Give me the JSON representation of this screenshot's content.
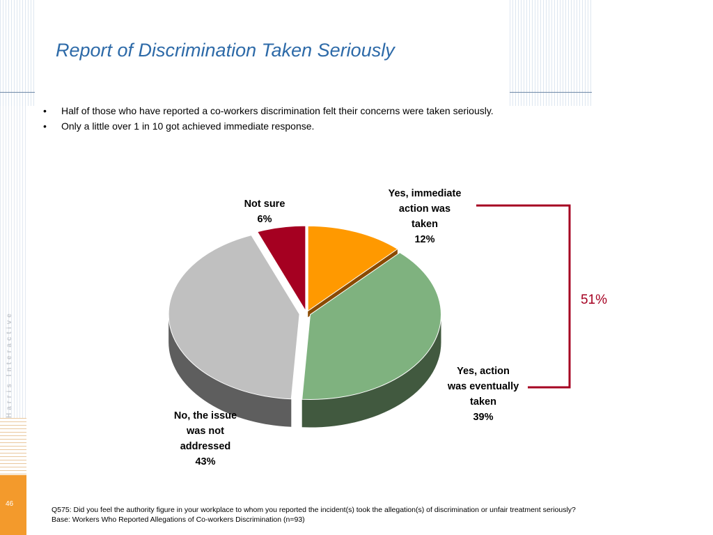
{
  "slide": {
    "title": "Report of Discrimination Taken Seriously",
    "bullets": [
      "Half of those who have reported a co-workers discrimination felt their concerns were taken seriously.",
      "Only a little over 1 in 10 got achieved immediate response."
    ],
    "brand": "Harris Interactive",
    "page_number": "46",
    "footer": {
      "question": "Q575: Did you feel the authority figure in your workplace to whom you reported the incident(s) took the allegation(s) of discrimination or unfair treatment seriously?",
      "base": "Base: Workers Who Reported Allegations of Co-workers Discrimination (n=93)"
    }
  },
  "chart_data": {
    "type": "pie",
    "slices": [
      {
        "label_lines": [
          "Yes, immediate",
          "action was",
          "taken"
        ],
        "value": 12,
        "value_label": "12%",
        "color": "#ff9900",
        "side_color": "#8a4a00"
      },
      {
        "label_lines": [
          "Yes, action",
          "was eventually",
          "taken"
        ],
        "value": 39,
        "value_label": "39%",
        "color": "#7fb27f",
        "side_color": "#41593f"
      },
      {
        "label_lines": [
          "No, the issue",
          "was not",
          "addressed"
        ],
        "value": 43,
        "value_label": "43%",
        "color": "#c0c0c0",
        "side_color": "#5e5e5e"
      },
      {
        "label_lines": [
          "Not sure"
        ],
        "value": 6,
        "value_label": "6%",
        "color": "#a50021",
        "side_color": "#5c0012"
      }
    ],
    "bracket": {
      "label": "51%",
      "color": "#a50021"
    }
  }
}
